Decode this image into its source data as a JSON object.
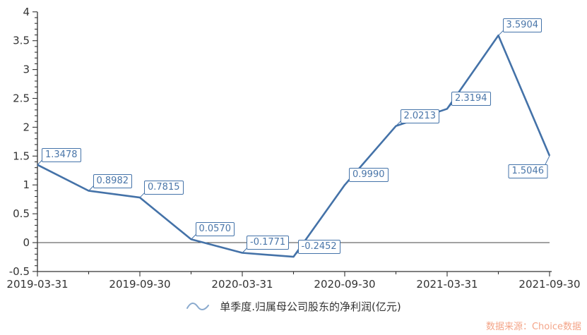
{
  "chart_data": {
    "type": "line",
    "title": "",
    "series_name": "单季度.归属母公司股东的净利润(亿元)",
    "x": [
      "2019-03-31",
      "2019-06-30",
      "2019-09-30",
      "2019-12-31",
      "2020-03-31",
      "2020-06-30",
      "2020-09-30",
      "2020-12-31",
      "2021-03-31",
      "2021-06-30",
      "2021-09-30"
    ],
    "values": [
      1.3478,
      0.8982,
      0.7815,
      0.057,
      -0.1771,
      -0.2452,
      0.999,
      2.0213,
      2.3194,
      3.5904,
      1.5046
    ],
    "point_labels": [
      "1.3478",
      "0.8982",
      "0.7815",
      "0.0570",
      "-0.1771",
      "-0.2452",
      "0.9990",
      "2.0213",
      "2.3194",
      "3.5904",
      "1.5046"
    ],
    "x_tick_labels": [
      "2019-03-31",
      "2019-09-30",
      "2020-03-31",
      "2020-09-30",
      "2021-03-31",
      "2021-09-30"
    ],
    "y_tick_labels": [
      "4",
      "3.5",
      "3",
      "2.5",
      "2",
      "1.5",
      "1",
      "0.5",
      "0",
      "-0.5"
    ],
    "ylim": [
      -0.5,
      4
    ],
    "y_minor_step": 0.1,
    "grid": false,
    "legend_position": "bottom",
    "zero_line": true
  },
  "legend": {
    "symbol": "wave-line-icon",
    "label": "单季度.归属母公司股东的净利润(亿元)"
  },
  "source": {
    "text": "数据来源：Choice数据"
  },
  "colors": {
    "line": "#4472a8",
    "point_label_text": "#4a76a9",
    "point_label_border": "#4473a9",
    "axis": "#333333",
    "zero_line": "#444444",
    "tick_text": "#333333",
    "legend_symbol": "#8aaace",
    "legend_text": "#333333",
    "source_text": "#f4a589"
  }
}
